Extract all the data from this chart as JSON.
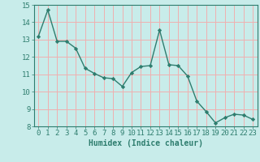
{
  "x": [
    0,
    1,
    2,
    3,
    4,
    5,
    6,
    7,
    8,
    9,
    10,
    11,
    12,
    13,
    14,
    15,
    16,
    17,
    18,
    19,
    20,
    21,
    22,
    23
  ],
  "y": [
    13.2,
    14.7,
    12.9,
    12.9,
    12.5,
    11.35,
    11.05,
    10.8,
    10.75,
    10.3,
    11.1,
    11.45,
    11.5,
    13.55,
    11.55,
    11.5,
    10.9,
    9.45,
    8.85,
    8.2,
    8.5,
    8.7,
    8.65,
    8.4
  ],
  "line_color": "#2e7d6e",
  "marker": "D",
  "marker_size": 2.2,
  "background_color": "#c8ecea",
  "grid_color_major": "#f0b0b0",
  "grid_color_minor": "#f0b0b0",
  "xlabel": "Humidex (Indice chaleur)",
  "xlim": [
    -0.5,
    23.5
  ],
  "ylim": [
    8,
    15
  ],
  "yticks": [
    8,
    9,
    10,
    11,
    12,
    13,
    14,
    15
  ],
  "xticks": [
    0,
    1,
    2,
    3,
    4,
    5,
    6,
    7,
    8,
    9,
    10,
    11,
    12,
    13,
    14,
    15,
    16,
    17,
    18,
    19,
    20,
    21,
    22,
    23
  ],
  "xtick_labels": [
    "0",
    "1",
    "2",
    "3",
    "4",
    "5",
    "6",
    "7",
    "8",
    "9",
    "10",
    "11",
    "12",
    "13",
    "14",
    "15",
    "16",
    "17",
    "18",
    "19",
    "20",
    "21",
    "22",
    "23"
  ],
  "tick_color": "#2e7d6e",
  "label_fontsize": 7,
  "tick_fontsize": 6.5,
  "linewidth": 1.0
}
